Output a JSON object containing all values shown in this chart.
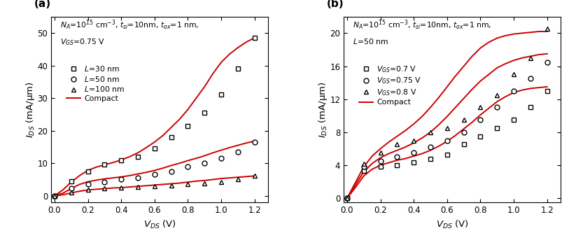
{
  "panel_a": {
    "title_label": "(a)",
    "annot_line1": "$N_A$=10$^{15}$ cm$^{-3}$, $t_{si}$=10nm, $t_{ox}$=1 nm,",
    "annot_line2": "$V_{GS}$=0.75 V",
    "xlabel": "$V_{DS}$ (V)",
    "ylabel": "$I_{DS}$ (mA/μm)",
    "xlim": [
      -0.02,
      1.28
    ],
    "ylim": [
      -2,
      55
    ],
    "yticks": [
      0,
      10,
      20,
      30,
      40,
      50
    ],
    "xticks": [
      0.0,
      0.2,
      0.4,
      0.6,
      0.8,
      1.0,
      1.2
    ],
    "scatter_L30": {
      "x": [
        0.0,
        0.1,
        0.2,
        0.3,
        0.4,
        0.5,
        0.6,
        0.7,
        0.8,
        0.9,
        1.0,
        1.1,
        1.2
      ],
      "y": [
        0.0,
        4.5,
        7.5,
        9.5,
        10.8,
        12.0,
        14.5,
        18.0,
        21.5,
        25.5,
        31.0,
        39.0,
        48.5
      ]
    },
    "scatter_L50": {
      "x": [
        0.0,
        0.1,
        0.2,
        0.3,
        0.4,
        0.5,
        0.6,
        0.7,
        0.8,
        0.9,
        1.0,
        1.1,
        1.2
      ],
      "y": [
        0.0,
        2.2,
        3.5,
        4.3,
        5.0,
        5.5,
        6.5,
        7.5,
        9.0,
        10.0,
        11.5,
        13.5,
        16.5
      ]
    },
    "scatter_L100": {
      "x": [
        0.0,
        0.1,
        0.2,
        0.3,
        0.4,
        0.5,
        0.6,
        0.7,
        0.8,
        0.9,
        1.0,
        1.1,
        1.2
      ],
      "y": [
        0.0,
        1.0,
        1.8,
        2.2,
        2.5,
        2.8,
        3.0,
        3.2,
        3.5,
        3.8,
        4.2,
        5.0,
        6.2
      ]
    },
    "curve_L30": {
      "x": [
        0.0,
        0.05,
        0.1,
        0.15,
        0.2,
        0.25,
        0.3,
        0.35,
        0.4,
        0.45,
        0.5,
        0.55,
        0.6,
        0.65,
        0.7,
        0.75,
        0.8,
        0.85,
        0.9,
        0.95,
        1.0,
        1.05,
        1.1,
        1.15,
        1.2
      ],
      "y": [
        0.0,
        1.8,
        4.2,
        6.2,
        7.8,
        8.8,
        9.5,
        10.2,
        11.0,
        12.0,
        13.2,
        14.8,
        16.5,
        18.5,
        21.0,
        23.5,
        26.5,
        30.0,
        33.5,
        37.5,
        41.0,
        43.5,
        45.5,
        47.2,
        48.5
      ]
    },
    "curve_L50": {
      "x": [
        0.0,
        0.05,
        0.1,
        0.15,
        0.2,
        0.25,
        0.3,
        0.35,
        0.4,
        0.45,
        0.5,
        0.55,
        0.6,
        0.65,
        0.7,
        0.75,
        0.8,
        0.85,
        0.9,
        0.95,
        1.0,
        1.05,
        1.1,
        1.15,
        1.2
      ],
      "y": [
        0.0,
        0.8,
        2.2,
        3.5,
        4.3,
        4.8,
        5.2,
        5.5,
        5.8,
        6.2,
        6.7,
        7.2,
        7.8,
        8.5,
        9.3,
        10.0,
        10.8,
        11.5,
        12.3,
        13.2,
        14.0,
        14.8,
        15.5,
        16.2,
        16.8
      ]
    },
    "curve_L100": {
      "x": [
        0.0,
        0.05,
        0.1,
        0.15,
        0.2,
        0.25,
        0.3,
        0.35,
        0.4,
        0.45,
        0.5,
        0.55,
        0.6,
        0.65,
        0.7,
        0.75,
        0.8,
        0.85,
        0.9,
        0.95,
        1.0,
        1.05,
        1.1,
        1.15,
        1.2
      ],
      "y": [
        0.0,
        0.3,
        0.9,
        1.4,
        1.8,
        2.0,
        2.2,
        2.4,
        2.5,
        2.7,
        2.9,
        3.1,
        3.3,
        3.5,
        3.7,
        3.9,
        4.2,
        4.5,
        4.7,
        5.0,
        5.3,
        5.5,
        5.7,
        5.9,
        6.1
      ]
    },
    "legend_entries": [
      "$L$=30 nm",
      "$L$=50 nm",
      "$L$=100 nm",
      "Compact"
    ]
  },
  "panel_b": {
    "title_label": "(b)",
    "annot_line1": "$N_A$=10$^{15}$ cm$^{-3}$, $t_{si}$=10nm, $t_{ox}$=1 nm,",
    "annot_line2": "$L$=50 nm",
    "xlabel": "$V_{DS}$ (V)",
    "ylabel": "$I_{DS}$ (mA/μm)",
    "xlim": [
      -0.02,
      1.28
    ],
    "ylim": [
      -0.5,
      22
    ],
    "yticks": [
      0,
      4,
      8,
      12,
      16,
      20
    ],
    "xticks": [
      0.0,
      0.2,
      0.4,
      0.6,
      0.8,
      1.0,
      1.2
    ],
    "scatter_V07": {
      "x": [
        0.0,
        0.1,
        0.2,
        0.3,
        0.4,
        0.5,
        0.6,
        0.7,
        0.8,
        0.9,
        1.0,
        1.1,
        1.2
      ],
      "y": [
        0.0,
        3.3,
        3.8,
        4.0,
        4.3,
        4.8,
        5.3,
        6.5,
        7.5,
        8.5,
        9.5,
        11.0,
        13.0
      ]
    },
    "scatter_V075": {
      "x": [
        0.0,
        0.1,
        0.2,
        0.3,
        0.4,
        0.5,
        0.6,
        0.7,
        0.8,
        0.9,
        1.0,
        1.1,
        1.2
      ],
      "y": [
        0.0,
        3.8,
        4.5,
        5.0,
        5.5,
        6.2,
        7.0,
        8.0,
        9.5,
        11.0,
        13.0,
        14.5,
        16.5
      ]
    },
    "scatter_V08": {
      "x": [
        0.0,
        0.1,
        0.2,
        0.3,
        0.4,
        0.5,
        0.6,
        0.7,
        0.8,
        0.9,
        1.0,
        1.1,
        1.2
      ],
      "y": [
        0.0,
        4.2,
        5.5,
        6.5,
        7.0,
        8.0,
        8.5,
        9.5,
        11.0,
        12.5,
        15.0,
        17.0,
        20.5
      ]
    },
    "curve_V07": {
      "x": [
        0.0,
        0.05,
        0.1,
        0.15,
        0.2,
        0.25,
        0.3,
        0.35,
        0.4,
        0.45,
        0.5,
        0.55,
        0.6,
        0.65,
        0.7,
        0.75,
        0.8,
        0.85,
        0.9,
        0.95,
        1.0,
        1.05,
        1.1,
        1.15,
        1.2
      ],
      "y": [
        0.0,
        1.3,
        2.7,
        3.5,
        4.0,
        4.3,
        4.6,
        4.8,
        5.1,
        5.4,
        5.8,
        6.3,
        6.9,
        7.6,
        8.4,
        9.2,
        10.1,
        10.9,
        11.7,
        12.3,
        12.8,
        13.1,
        13.3,
        13.4,
        13.5
      ]
    },
    "curve_V075": {
      "x": [
        0.0,
        0.05,
        0.1,
        0.15,
        0.2,
        0.25,
        0.3,
        0.35,
        0.4,
        0.45,
        0.5,
        0.55,
        0.6,
        0.65,
        0.7,
        0.75,
        0.8,
        0.85,
        0.9,
        0.95,
        1.0,
        1.05,
        1.1,
        1.15,
        1.2
      ],
      "y": [
        0.0,
        1.6,
        3.2,
        4.2,
        4.9,
        5.4,
        5.8,
        6.2,
        6.7,
        7.3,
        8.0,
        8.9,
        9.9,
        11.0,
        12.1,
        13.2,
        14.2,
        15.0,
        15.8,
        16.3,
        16.7,
        17.0,
        17.2,
        17.4,
        17.5
      ]
    },
    "curve_V08": {
      "x": [
        0.0,
        0.05,
        0.1,
        0.15,
        0.2,
        0.25,
        0.3,
        0.35,
        0.4,
        0.45,
        0.5,
        0.55,
        0.6,
        0.65,
        0.7,
        0.75,
        0.8,
        0.85,
        0.9,
        0.95,
        1.0,
        1.05,
        1.1,
        1.15,
        1.2
      ],
      "y": [
        0.0,
        1.9,
        3.8,
        5.1,
        6.0,
        6.8,
        7.5,
        8.2,
        9.0,
        9.9,
        11.0,
        12.2,
        13.5,
        14.8,
        16.0,
        17.2,
        18.2,
        18.9,
        19.4,
        19.7,
        19.9,
        20.0,
        20.1,
        20.2,
        20.2
      ]
    },
    "legend_entries": [
      "$V_{GS}$=0.7 V",
      "$V_{GS}$=0.75 V",
      "$V_{GS}$=0.8 V",
      "Compact"
    ]
  },
  "line_color": "#cc0000",
  "marker_color": "black",
  "marker_size": 5,
  "marker_linewidth": 1.0
}
